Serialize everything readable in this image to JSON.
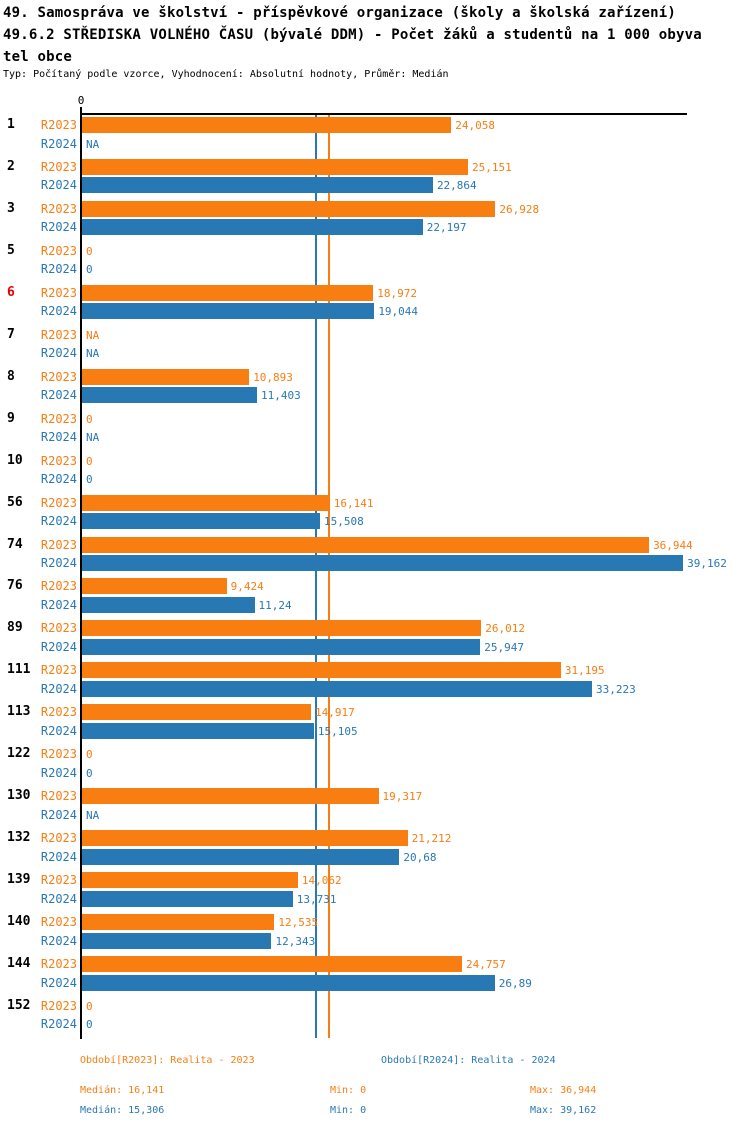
{
  "title": {
    "line1": "49. Samospráva ve školství - příspěvkové organizace (školy a školská zařízení)",
    "line2": "49.6.2 STŘEDISKA VOLNÉHO ČASU (bývalé DDM) - Počet žáků a studentů na 1 000 obyva",
    "line3": "tel obce",
    "subtitle": "Typ: Počítaný podle vzorce, Vyhodnocení: Absolutní hodnoty, Průměr: Medián"
  },
  "colors": {
    "r2023": "#F87E11",
    "r2024": "#2878B4",
    "highlight_row_id": "#E60000",
    "axis": "#000000"
  },
  "chart_data": {
    "type": "bar",
    "orientation": "horizontal",
    "grid": false,
    "axis_tick_label": "0",
    "xlim": [
      0,
      39.48
    ],
    "series_names": [
      "R2023",
      "R2024"
    ],
    "median_lines": [
      {
        "series": "R2023",
        "value": 16.141
      },
      {
        "series": "R2024",
        "value": 15.306
      }
    ],
    "rows": [
      {
        "id": "1",
        "highlight": false,
        "values": [
          {
            "series": "R2023",
            "value": 24.058,
            "label": "24,058"
          },
          {
            "series": "R2024",
            "value": null,
            "label": "NA"
          }
        ]
      },
      {
        "id": "2",
        "highlight": false,
        "values": [
          {
            "series": "R2023",
            "value": 25.151,
            "label": "25,151"
          },
          {
            "series": "R2024",
            "value": 22.864,
            "label": "22,864"
          }
        ]
      },
      {
        "id": "3",
        "highlight": false,
        "values": [
          {
            "series": "R2023",
            "value": 26.928,
            "label": "26,928"
          },
          {
            "series": "R2024",
            "value": 22.197,
            "label": "22,197"
          }
        ]
      },
      {
        "id": "5",
        "highlight": false,
        "values": [
          {
            "series": "R2023",
            "value": 0,
            "label": "0"
          },
          {
            "series": "R2024",
            "value": 0,
            "label": "0"
          }
        ]
      },
      {
        "id": "6",
        "highlight": true,
        "values": [
          {
            "series": "R2023",
            "value": 18.972,
            "label": "18,972"
          },
          {
            "series": "R2024",
            "value": 19.044,
            "label": "19,044"
          }
        ]
      },
      {
        "id": "7",
        "highlight": false,
        "values": [
          {
            "series": "R2023",
            "value": null,
            "label": "NA"
          },
          {
            "series": "R2024",
            "value": null,
            "label": "NA"
          }
        ]
      },
      {
        "id": "8",
        "highlight": false,
        "values": [
          {
            "series": "R2023",
            "value": 10.893,
            "label": "10,893"
          },
          {
            "series": "R2024",
            "value": 11.403,
            "label": "11,403"
          }
        ]
      },
      {
        "id": "9",
        "highlight": false,
        "values": [
          {
            "series": "R2023",
            "value": 0,
            "label": "0"
          },
          {
            "series": "R2024",
            "value": null,
            "label": "NA"
          }
        ]
      },
      {
        "id": "10",
        "highlight": false,
        "values": [
          {
            "series": "R2023",
            "value": 0,
            "label": "0"
          },
          {
            "series": "R2024",
            "value": 0,
            "label": "0"
          }
        ]
      },
      {
        "id": "56",
        "highlight": false,
        "values": [
          {
            "series": "R2023",
            "value": 16.141,
            "label": "16,141"
          },
          {
            "series": "R2024",
            "value": 15.508,
            "label": "15,508"
          }
        ]
      },
      {
        "id": "74",
        "highlight": false,
        "values": [
          {
            "series": "R2023",
            "value": 36.944,
            "label": "36,944"
          },
          {
            "series": "R2024",
            "value": 39.162,
            "label": "39,162"
          }
        ]
      },
      {
        "id": "76",
        "highlight": false,
        "values": [
          {
            "series": "R2023",
            "value": 9.424,
            "label": "9,424"
          },
          {
            "series": "R2024",
            "value": 11.24,
            "label": "11,24"
          }
        ]
      },
      {
        "id": "89",
        "highlight": false,
        "values": [
          {
            "series": "R2023",
            "value": 26.012,
            "label": "26,012"
          },
          {
            "series": "R2024",
            "value": 25.947,
            "label": "25,947"
          }
        ]
      },
      {
        "id": "111",
        "highlight": false,
        "values": [
          {
            "series": "R2023",
            "value": 31.195,
            "label": "31,195"
          },
          {
            "series": "R2024",
            "value": 33.223,
            "label": "33,223"
          }
        ]
      },
      {
        "id": "113",
        "highlight": false,
        "values": [
          {
            "series": "R2023",
            "value": 14.917,
            "label": "14,917"
          },
          {
            "series": "R2024",
            "value": 15.105,
            "label": "15,105"
          }
        ]
      },
      {
        "id": "122",
        "highlight": false,
        "values": [
          {
            "series": "R2023",
            "value": 0,
            "label": "0"
          },
          {
            "series": "R2024",
            "value": 0,
            "label": "0"
          }
        ]
      },
      {
        "id": "130",
        "highlight": false,
        "values": [
          {
            "series": "R2023",
            "value": 19.317,
            "label": "19,317"
          },
          {
            "series": "R2024",
            "value": null,
            "label": "NA"
          }
        ]
      },
      {
        "id": "132",
        "highlight": false,
        "values": [
          {
            "series": "R2023",
            "value": 21.212,
            "label": "21,212"
          },
          {
            "series": "R2024",
            "value": 20.68,
            "label": "20,68"
          }
        ]
      },
      {
        "id": "139",
        "highlight": false,
        "values": [
          {
            "series": "R2023",
            "value": 14.062,
            "label": "14,062"
          },
          {
            "series": "R2024",
            "value": 13.731,
            "label": "13,731"
          }
        ]
      },
      {
        "id": "140",
        "highlight": false,
        "values": [
          {
            "series": "R2023",
            "value": 12.535,
            "label": "12,535"
          },
          {
            "series": "R2024",
            "value": 12.343,
            "label": "12,343"
          }
        ]
      },
      {
        "id": "144",
        "highlight": false,
        "values": [
          {
            "series": "R2023",
            "value": 24.757,
            "label": "24,757"
          },
          {
            "series": "R2024",
            "value": 26.89,
            "label": "26,89"
          }
        ]
      },
      {
        "id": "152",
        "highlight": false,
        "values": [
          {
            "series": "R2023",
            "value": 0,
            "label": "0"
          },
          {
            "series": "R2024",
            "value": 0,
            "label": "0"
          }
        ]
      }
    ]
  },
  "legend": {
    "period_r2023": "Období[R2023]: Realita - 2023",
    "period_r2024": "Období[R2024]: Realita - 2024",
    "stats_r2023": {
      "median": "Medián: 16,141",
      "min": "Min: 0",
      "max": "Max: 36,944"
    },
    "stats_r2024": {
      "median": "Medián: 15,306",
      "min": "Min: 0",
      "max": "Max: 39,162"
    }
  }
}
